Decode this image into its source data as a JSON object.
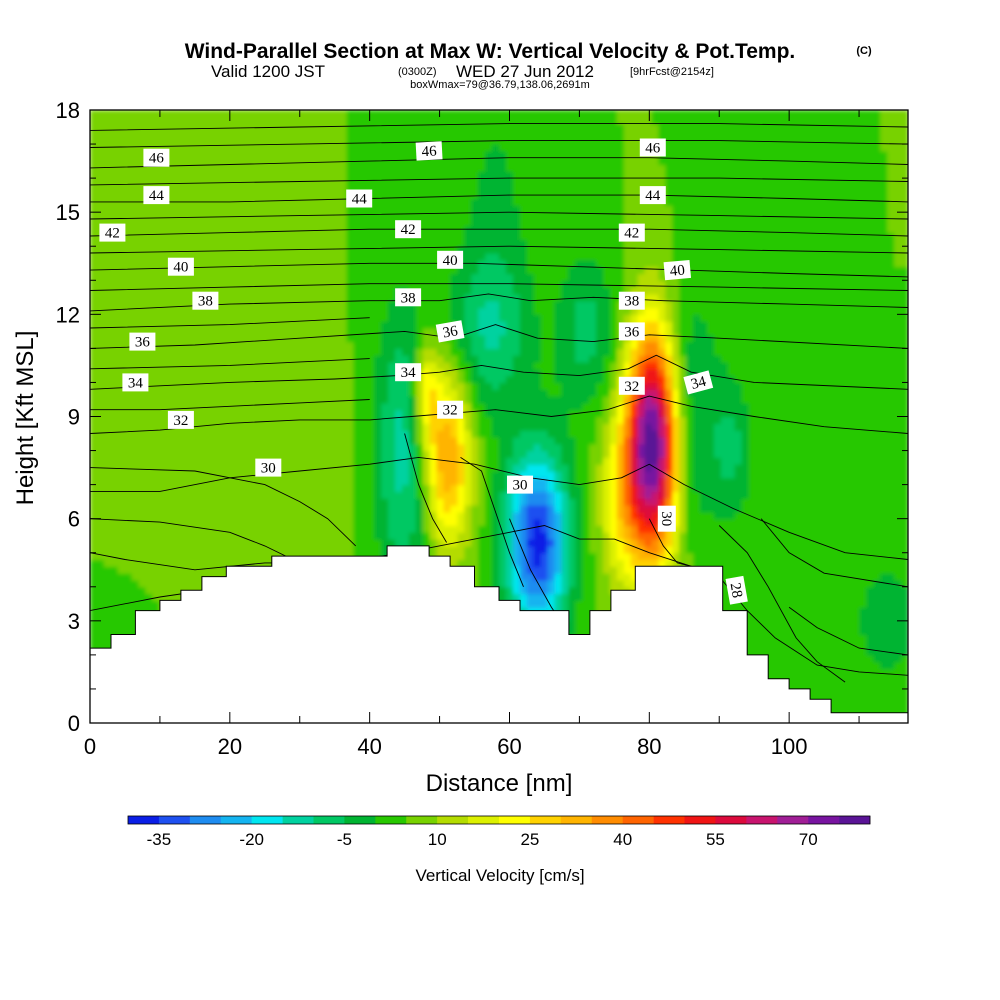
{
  "header": {
    "title": "Wind-Parallel Section at Max W: Vertical Velocity & Pot.Temp.",
    "copyright": "(C)",
    "valid_prefix": "Valid 1200 JST",
    "valid_utc": "(0300Z)",
    "valid_date": "WED 27 Jun 2012",
    "forecast": "[9hrFcst@2154z]",
    "box_info": "boxWmax=79@36.79,138.06,2691m"
  },
  "chart_data": {
    "type": "heatmap",
    "title": "Wind-Parallel Section at Max W: Vertical Velocity & Pot.Temp.",
    "xlabel": "Distance [nm]",
    "ylabel": "Height [Kft MSL]",
    "xlim": [
      0,
      117
    ],
    "ylim": [
      0,
      18
    ],
    "xticks": [
      0,
      20,
      40,
      60,
      80,
      100
    ],
    "yticks": [
      0,
      3,
      6,
      9,
      12,
      15,
      18
    ],
    "background_w": 5,
    "colorbar": {
      "title": "Vertical Velocity [cm/s]",
      "levels": [
        -40,
        -35,
        -30,
        -25,
        -20,
        -15,
        -10,
        -5,
        0,
        5,
        10,
        15,
        20,
        25,
        30,
        35,
        40,
        45,
        50,
        55,
        60,
        65,
        70,
        75,
        80
      ],
      "colors": [
        "#0a1ee6",
        "#1e50f0",
        "#1e8cf0",
        "#14b4f0",
        "#00e6f0",
        "#00d2a0",
        "#00c864",
        "#00b432",
        "#28c800",
        "#78d200",
        "#b4dc00",
        "#dcf000",
        "#ffff00",
        "#ffd200",
        "#ffb400",
        "#ff8c00",
        "#ff6400",
        "#ff3200",
        "#f01414",
        "#dc0a3c",
        "#c8146e",
        "#a01e96",
        "#7814a0",
        "#5a1496"
      ],
      "tick_labels": [
        "-35",
        "-20",
        "-5",
        "10",
        "25",
        "40",
        "55",
        "70"
      ],
      "tick_values": [
        -35,
        -20,
        -5,
        10,
        25,
        40,
        55,
        70
      ]
    },
    "w_features": [
      {
        "x": 51,
        "y": 7.8,
        "sx": 2.5,
        "sy": 1.8,
        "w": 32
      },
      {
        "x": 48,
        "y": 9.8,
        "sx": 1.3,
        "sy": 1.0,
        "w": 20
      },
      {
        "x": 80.5,
        "y": 8.2,
        "sx": 2.6,
        "sy": 2.3,
        "w": 78
      },
      {
        "x": 76,
        "y": 6.5,
        "sx": 2.2,
        "sy": 1.7,
        "w": 16
      },
      {
        "x": 64,
        "y": 5.3,
        "sx": 3.2,
        "sy": 1.9,
        "w": -42
      },
      {
        "x": 45,
        "y": 8.0,
        "sx": 3.0,
        "sy": 3.0,
        "w": -18
      },
      {
        "x": 57,
        "y": 11.5,
        "sx": 4.0,
        "sy": 1.6,
        "w": -12
      },
      {
        "x": 71,
        "y": 11.5,
        "sx": 3.0,
        "sy": 1.6,
        "w": -12
      },
      {
        "x": 85,
        "y": 9.0,
        "sx": 3.5,
        "sy": 2.5,
        "w": -14
      },
      {
        "x": 92,
        "y": 8.0,
        "sx": 2.0,
        "sy": 1.5,
        "w": -10
      },
      {
        "x": 114,
        "y": 3.0,
        "sx": 3.0,
        "sy": 1.2,
        "w": -10
      },
      {
        "x": 58,
        "y": 14.5,
        "sx": 4.0,
        "sy": 4.0,
        "w": -6
      },
      {
        "x": 100,
        "y": 3.5,
        "sx": 6.0,
        "sy": 1.5,
        "w": 0
      },
      {
        "x": 5,
        "y": 2.5,
        "sx": 6.0,
        "sy": 1.5,
        "w": -2
      },
      {
        "x": 20,
        "y": 7.0,
        "sx": 10.0,
        "sy": 3.0,
        "w": 4
      }
    ],
    "terrain": [
      {
        "x": 0,
        "h": 2.2
      },
      {
        "x": 3,
        "h": 2.6
      },
      {
        "x": 6.5,
        "h": 3.3
      },
      {
        "x": 10,
        "h": 3.6
      },
      {
        "x": 13,
        "h": 3.9
      },
      {
        "x": 16,
        "h": 4.3
      },
      {
        "x": 19.5,
        "h": 4.6
      },
      {
        "x": 26,
        "h": 4.9
      },
      {
        "x": 42.5,
        "h": 5.2
      },
      {
        "x": 48.5,
        "h": 4.9
      },
      {
        "x": 51.5,
        "h": 4.6
      },
      {
        "x": 55,
        "h": 4.0
      },
      {
        "x": 58.5,
        "h": 3.6
      },
      {
        "x": 61.5,
        "h": 3.3
      },
      {
        "x": 68.5,
        "h": 2.6
      },
      {
        "x": 71.5,
        "h": 3.3
      },
      {
        "x": 74.5,
        "h": 3.9
      },
      {
        "x": 78,
        "h": 4.6
      },
      {
        "x": 90.5,
        "h": 3.3
      },
      {
        "x": 94,
        "h": 2.0
      },
      {
        "x": 97,
        "h": 1.3
      },
      {
        "x": 100,
        "h": 1.0
      },
      {
        "x": 103,
        "h": 0.7
      },
      {
        "x": 106,
        "h": 0.3
      },
      {
        "x": 117,
        "h": 0.3
      }
    ],
    "isentropes": [
      {
        "theta": 28,
        "pts": [
          [
            0,
            5.0
          ],
          [
            5,
            4.8
          ],
          [
            15,
            4.5
          ],
          [
            25,
            4.7
          ],
          [
            35,
            4.7
          ],
          [
            45,
            5.0
          ],
          [
            55,
            5.4
          ],
          [
            60,
            5.6
          ],
          [
            65,
            5.8
          ],
          [
            70,
            5.4
          ],
          [
            75,
            5.4
          ],
          [
            80,
            5.0
          ],
          [
            86,
            4.6
          ],
          [
            90,
            4.3
          ],
          [
            94,
            3.3
          ],
          [
            98,
            2.5
          ],
          [
            104,
            1.7
          ],
          [
            110,
            1.5
          ],
          [
            117,
            1.4
          ]
        ]
      },
      {
        "theta": 30,
        "pts": [
          [
            0,
            6.8
          ],
          [
            10,
            6.8
          ],
          [
            20,
            7.2
          ],
          [
            30,
            7.4
          ],
          [
            40,
            7.6
          ],
          [
            47,
            7.8
          ],
          [
            55,
            7.6
          ],
          [
            63,
            7.2
          ],
          [
            70,
            7.0
          ],
          [
            76,
            7.2
          ],
          [
            80,
            7.6
          ],
          [
            85,
            7.0
          ],
          [
            92,
            6.3
          ],
          [
            100,
            5.6
          ],
          [
            108,
            5.0
          ],
          [
            117,
            4.8
          ]
        ]
      },
      {
        "theta": 32,
        "pts": [
          [
            0,
            8.5
          ],
          [
            10,
            8.6
          ],
          [
            20,
            8.8
          ],
          [
            30,
            8.9
          ],
          [
            40,
            8.9
          ],
          [
            46,
            9.0
          ],
          [
            52,
            9.1
          ],
          [
            58,
            9.2
          ],
          [
            66,
            9.0
          ],
          [
            74,
            9.2
          ],
          [
            80,
            9.6
          ],
          [
            86,
            9.3
          ],
          [
            95,
            9.0
          ],
          [
            105,
            8.7
          ],
          [
            117,
            8.5
          ]
        ]
      },
      {
        "theta": 34,
        "pts": [
          [
            0,
            9.8
          ],
          [
            10,
            9.9
          ],
          [
            20,
            10.0
          ],
          [
            35,
            10.1
          ],
          [
            44,
            10.2
          ],
          [
            50,
            10.3
          ],
          [
            56,
            10.5
          ],
          [
            62,
            10.3
          ],
          [
            70,
            10.2
          ],
          [
            77,
            10.4
          ],
          [
            81,
            10.8
          ],
          [
            86,
            10.3
          ],
          [
            95,
            10.0
          ],
          [
            117,
            9.8
          ]
        ]
      },
      {
        "theta": 36,
        "pts": [
          [
            0,
            11.0
          ],
          [
            15,
            11.1
          ],
          [
            30,
            11.3
          ],
          [
            45,
            11.5
          ],
          [
            52,
            11.3
          ],
          [
            58,
            11.7
          ],
          [
            64,
            11.3
          ],
          [
            72,
            11.2
          ],
          [
            80,
            11.4
          ],
          [
            90,
            11.3
          ],
          [
            117,
            11.0
          ]
        ]
      },
      {
        "theta": 38,
        "pts": [
          [
            0,
            12.1
          ],
          [
            20,
            12.3
          ],
          [
            40,
            12.4
          ],
          [
            50,
            12.4
          ],
          [
            57,
            12.6
          ],
          [
            63,
            12.4
          ],
          [
            72,
            12.5
          ],
          [
            82,
            12.4
          ],
          [
            100,
            12.3
          ],
          [
            117,
            12.2
          ]
        ]
      },
      {
        "theta": 40,
        "pts": [
          [
            0,
            13.3
          ],
          [
            20,
            13.4
          ],
          [
            40,
            13.5
          ],
          [
            55,
            13.5
          ],
          [
            70,
            13.4
          ],
          [
            85,
            13.3
          ],
          [
            100,
            13.2
          ],
          [
            117,
            13.1
          ]
        ]
      },
      {
        "theta": 42,
        "pts": [
          [
            0,
            14.3
          ],
          [
            20,
            14.4
          ],
          [
            40,
            14.5
          ],
          [
            60,
            14.5
          ],
          [
            80,
            14.5
          ],
          [
            100,
            14.4
          ],
          [
            117,
            14.3
          ]
        ]
      },
      {
        "theta": 44,
        "pts": [
          [
            0,
            15.3
          ],
          [
            20,
            15.3
          ],
          [
            40,
            15.4
          ],
          [
            60,
            15.5
          ],
          [
            80,
            15.5
          ],
          [
            100,
            15.4
          ],
          [
            117,
            15.3
          ]
        ]
      },
      {
        "theta": 46,
        "pts": [
          [
            0,
            16.3
          ],
          [
            20,
            16.4
          ],
          [
            40,
            16.5
          ],
          [
            60,
            16.6
          ],
          [
            80,
            16.6
          ],
          [
            100,
            16.5
          ],
          [
            117,
            16.4
          ]
        ]
      }
    ],
    "extra_isolines": [
      [
        [
          0,
          3.3
        ],
        [
          10,
          3.7
        ],
        [
          20,
          4.0
        ],
        [
          27,
          4.3
        ],
        [
          30,
          4.9
        ]
      ],
      [
        [
          0,
          6.0
        ],
        [
          10,
          5.9
        ],
        [
          20,
          5.6
        ],
        [
          25,
          5.2
        ],
        [
          28,
          4.9
        ]
      ],
      [
        [
          0,
          7.5
        ],
        [
          15,
          7.4
        ],
        [
          25,
          7.0
        ],
        [
          30,
          6.5
        ],
        [
          34,
          6.0
        ],
        [
          38,
          5.2
        ]
      ],
      [
        [
          0,
          9.2
        ],
        [
          10,
          9.2
        ],
        [
          20,
          9.3
        ],
        [
          30,
          9.4
        ],
        [
          40,
          9.5
        ]
      ],
      [
        [
          0,
          10.4
        ],
        [
          20,
          10.5
        ],
        [
          40,
          10.7
        ]
      ],
      [
        [
          0,
          11.6
        ],
        [
          20,
          11.7
        ],
        [
          40,
          11.9
        ]
      ],
      [
        [
          0,
          12.7
        ],
        [
          20,
          12.8
        ],
        [
          40,
          12.9
        ],
        [
          60,
          12.9
        ],
        [
          90,
          12.8
        ],
        [
          117,
          12.7
        ]
      ],
      [
        [
          0,
          13.8
        ],
        [
          30,
          13.9
        ],
        [
          60,
          14.0
        ],
        [
          90,
          13.9
        ],
        [
          117,
          13.8
        ]
      ],
      [
        [
          0,
          14.8
        ],
        [
          30,
          14.9
        ],
        [
          60,
          15.0
        ],
        [
          90,
          14.9
        ],
        [
          117,
          14.8
        ]
      ],
      [
        [
          0,
          15.8
        ],
        [
          30,
          15.9
        ],
        [
          60,
          16.0
        ],
        [
          90,
          16.0
        ],
        [
          117,
          15.9
        ]
      ],
      [
        [
          0,
          16.9
        ],
        [
          30,
          17.0
        ],
        [
          60,
          17.1
        ],
        [
          90,
          17.1
        ],
        [
          117,
          17.0
        ]
      ],
      [
        [
          0,
          17.4
        ],
        [
          30,
          17.5
        ],
        [
          60,
          17.6
        ],
        [
          90,
          17.6
        ],
        [
          117,
          17.5
        ]
      ],
      [
        [
          60,
          6.0
        ],
        [
          63,
          4.5
        ],
        [
          66,
          3.4
        ],
        [
          68,
          2.8
        ]
      ],
      [
        [
          80,
          6.0
        ],
        [
          82,
          5.2
        ],
        [
          84,
          4.7
        ],
        [
          86,
          4.6
        ]
      ],
      [
        [
          90,
          5.8
        ],
        [
          94,
          5.0
        ],
        [
          97,
          4.0
        ],
        [
          101,
          2.5
        ],
        [
          104,
          1.8
        ],
        [
          108,
          1.2
        ]
      ],
      [
        [
          100,
          3.4
        ],
        [
          104,
          2.8
        ],
        [
          110,
          2.2
        ],
        [
          117,
          2.0
        ]
      ],
      [
        [
          96,
          6.0
        ],
        [
          100,
          5.0
        ],
        [
          105,
          4.4
        ],
        [
          117,
          4.0
        ]
      ],
      [
        [
          45,
          8.5
        ],
        [
          47,
          7.0
        ],
        [
          49,
          6.0
        ],
        [
          51,
          5.3
        ]
      ],
      [
        [
          53,
          7.8
        ],
        [
          56,
          7.4
        ],
        [
          58,
          6.2
        ],
        [
          60,
          5.0
        ],
        [
          62,
          4.0
        ]
      ]
    ],
    "contour_labels": [
      {
        "text": "46",
        "x": 9.5,
        "y": 16.6,
        "rot": 0
      },
      {
        "text": "46",
        "x": 48.5,
        "y": 16.8,
        "rot": 3
      },
      {
        "text": "46",
        "x": 80.5,
        "y": 16.9,
        "rot": 0
      },
      {
        "text": "44",
        "x": 9.5,
        "y": 15.5,
        "rot": 0
      },
      {
        "text": "44",
        "x": 38.5,
        "y": 15.4,
        "rot": 0
      },
      {
        "text": "44",
        "x": 80.5,
        "y": 15.5,
        "rot": 0
      },
      {
        "text": "42",
        "x": 3.2,
        "y": 14.4,
        "rot": 0
      },
      {
        "text": "42",
        "x": 45.5,
        "y": 14.5,
        "rot": 0
      },
      {
        "text": "42",
        "x": 77.5,
        "y": 14.4,
        "rot": 0
      },
      {
        "text": "40",
        "x": 13,
        "y": 13.4,
        "rot": 0
      },
      {
        "text": "40",
        "x": 51.5,
        "y": 13.6,
        "rot": 0
      },
      {
        "text": "40",
        "x": 84,
        "y": 13.3,
        "rot": 5
      },
      {
        "text": "38",
        "x": 16.5,
        "y": 12.4,
        "rot": 0
      },
      {
        "text": "38",
        "x": 45.5,
        "y": 12.5,
        "rot": 0
      },
      {
        "text": "38",
        "x": 77.5,
        "y": 12.4,
        "rot": 0
      },
      {
        "text": "36",
        "x": 7.5,
        "y": 11.2,
        "rot": 0
      },
      {
        "text": "36",
        "x": 51.5,
        "y": 11.5,
        "rot": 10
      },
      {
        "text": "36",
        "x": 77.5,
        "y": 11.5,
        "rot": 0
      },
      {
        "text": "34",
        "x": 6.5,
        "y": 10.0,
        "rot": 0
      },
      {
        "text": "34",
        "x": 45.5,
        "y": 10.3,
        "rot": 0
      },
      {
        "text": "34",
        "x": 87,
        "y": 10.0,
        "rot": 15
      },
      {
        "text": "32",
        "x": 13,
        "y": 8.9,
        "rot": 0
      },
      {
        "text": "32",
        "x": 51.5,
        "y": 9.2,
        "rot": 0
      },
      {
        "text": "32",
        "x": 77.5,
        "y": 9.9,
        "rot": 0
      },
      {
        "text": "30",
        "x": 25.5,
        "y": 7.5,
        "rot": 0
      },
      {
        "text": "30",
        "x": 61.5,
        "y": 7.0,
        "rot": 0
      },
      {
        "text": "30",
        "x": 82.5,
        "y": 6.0,
        "rot": -90
      },
      {
        "text": "28",
        "x": 92.5,
        "y": 3.9,
        "rot": -80
      }
    ]
  }
}
